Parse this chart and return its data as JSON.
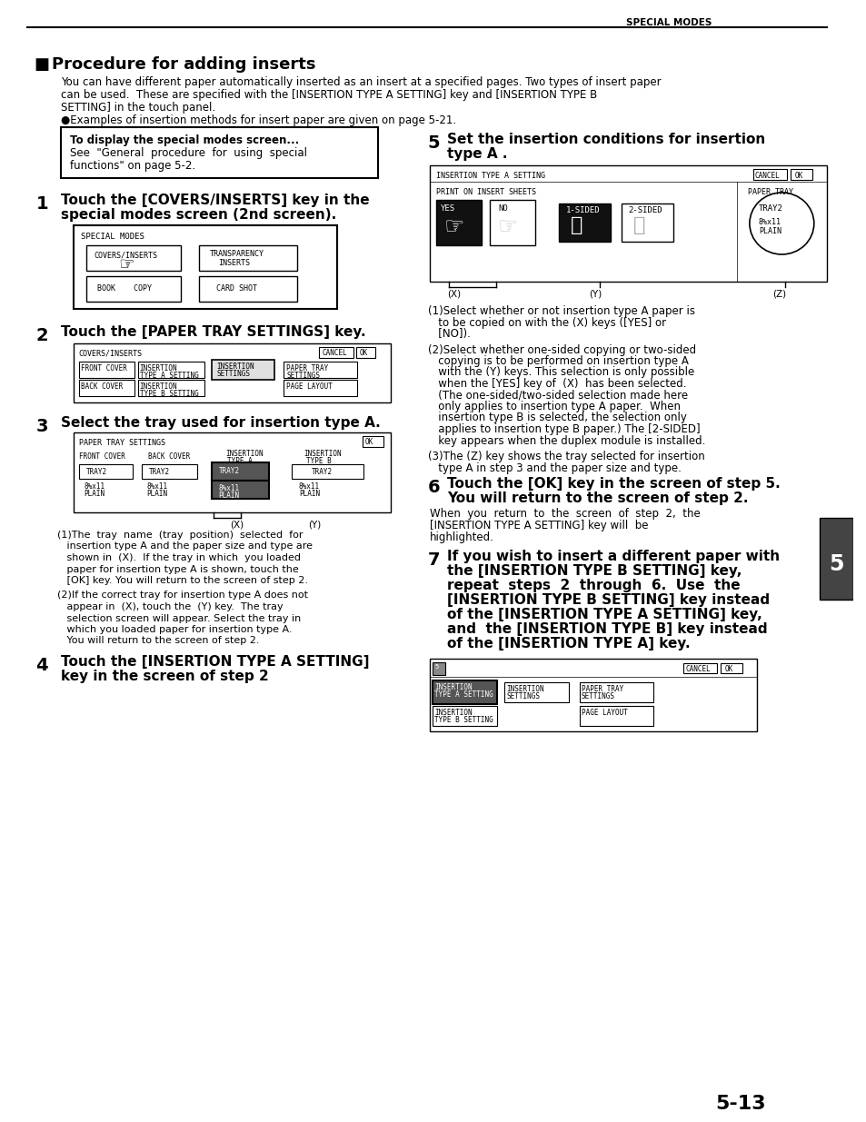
{
  "title_header": "SPECIAL MODES",
  "section_title": "Procedure for adding inserts",
  "intro_line1": "You can have different paper automatically inserted as an insert at a specified pages. Two types of insert paper",
  "intro_line2": "can be used.  These are specified with the [INSERTION TYPE A SETTING] key and [INSERTION TYPE B",
  "intro_line3": "SETTING] in the touch panel.",
  "intro_line4": "●Examples of insertion methods for insert paper are given on page 5-21.",
  "box_title": "To display the special modes screen...",
  "box_line1": "See  \"General  procedure  for  using  special",
  "box_line2": "functions\" on page 5-2.",
  "step1_title1": "Touch the [COVERS/INSERTS] key in the",
  "step1_title2": "special modes screen (2nd screen).",
  "step2_title": "Touch the [PAPER TRAY SETTINGS] key.",
  "step3_title": "Select the tray used for insertion type A.",
  "step4_title1": "Touch the [INSERTION TYPE A SETTING]",
  "step4_title2": "key in the screen of step 2",
  "step5_title1": "Set the insertion conditions for insertion",
  "step5_title2": "type A .",
  "step5_t1_1": "(1)Select whether or not insertion type A paper is",
  "step5_t1_2": "   to be copied on with the (X) keys ([YES] or",
  "step5_t1_3": "   [NO]).",
  "step5_t2_1": "(2)Select whether one-sided copying or two-sided",
  "step5_t2_2": "   copying is to be performed on insertion type A",
  "step5_t2_3": "   with the (Y) keys. This selection is only possible",
  "step5_t2_4": "   when the [YES] key of  (X)  has been selected.",
  "step5_t2_5": "   (The one-sided/two-sided selection made here",
  "step5_t2_6": "   only applies to insertion type A paper.  When",
  "step5_t2_7": "   insertion type B is selected, the selection only",
  "step5_t2_8": "   applies to insertion type B paper.) The [2-SIDED]",
  "step5_t2_9": "   key appears when the duplex module is installed.",
  "step5_t3_1": "(3)The (Z) key shows the tray selected for insertion",
  "step5_t3_2": "   type A in step 3 and the paper size and type.",
  "step6_title1": "Touch the [OK] key in the screen of step 5.",
  "step6_title2": "You will return to the screen of step 2.",
  "step6_t1": "When  you  return  to  the  screen  of  step  2,  the",
  "step6_t2": "[INSERTION TYPE A SETTING] key will  be",
  "step6_t3": "highlighted.",
  "step7_title1": "If you wish to insert a different paper with",
  "step7_title2": "the [INSERTION TYPE B SETTING] key,",
  "step7_title3": "repeat  steps  2  through  6.  Use  the",
  "step7_title4": "[INSERTION TYPE B SETTING] key instead",
  "step7_title5": "of the [INSERTION TYPE A SETTING] key,",
  "step7_title6": "and  the [INSERTION TYPE B] key instead",
  "step7_title7": "of the [INSERTION TYPE A] key.",
  "step3_t1_1": "(1)The  tray  name  (tray  position)  selected  for",
  "step3_t1_2": "   insertion type A and the paper size and type are",
  "step3_t1_3": "   shown in  (X).  If the tray in which  you loaded",
  "step3_t1_4": "   paper for insertion type A is shown, touch the",
  "step3_t1_5": "   [OK] key. You will return to the screen of step 2.",
  "step3_t2_1": "(2)If the correct tray for insertion type A does not",
  "step3_t2_2": "   appear in  (X), touch the  (Y) key.  The tray",
  "step3_t2_3": "   selection screen will appear. Select the tray in",
  "step3_t2_4": "   which you loaded paper for insertion type A.",
  "step3_t2_5": "   You will return to the screen of step 2.",
  "page_num": "5-13",
  "tab_num": "5",
  "bg_color": "#ffffff"
}
